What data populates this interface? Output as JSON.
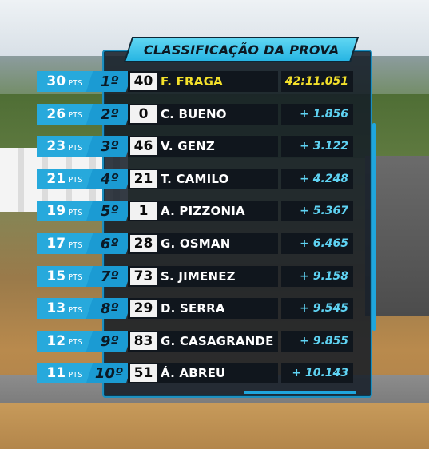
{
  "title": "CLASSIFICAÇÃO DA PROVA",
  "pts_unit": "PTS",
  "colors": {
    "accent": "#27a9dc",
    "leader_text": "#f4e12b",
    "gap_text": "#5fd3f3",
    "panel_bg": "#14202a"
  },
  "standings": [
    {
      "points": "30",
      "position": "1º",
      "car_number": "40",
      "driver": "F. FRAGA",
      "gap": "42:11.051",
      "leader": true
    },
    {
      "points": "26",
      "position": "2º",
      "car_number": "0",
      "driver": "C. BUENO",
      "gap": "+ 1.856",
      "leader": false
    },
    {
      "points": "23",
      "position": "3º",
      "car_number": "46",
      "driver": "V. GENZ",
      "gap": "+ 3.122",
      "leader": false
    },
    {
      "points": "21",
      "position": "4º",
      "car_number": "21",
      "driver": "T. CAMILO",
      "gap": "+ 4.248",
      "leader": false
    },
    {
      "points": "19",
      "position": "5º",
      "car_number": "1",
      "driver": "A. PIZZONIA",
      "gap": "+ 5.367",
      "leader": false
    },
    {
      "points": "17",
      "position": "6º",
      "car_number": "28",
      "driver": "G. OSMAN",
      "gap": "+ 6.465",
      "leader": false
    },
    {
      "points": "15",
      "position": "7º",
      "car_number": "73",
      "driver": "S. JIMENEZ",
      "gap": "+ 9.158",
      "leader": false
    },
    {
      "points": "13",
      "position": "8º",
      "car_number": "29",
      "driver": "D. SERRA",
      "gap": "+ 9.545",
      "leader": false
    },
    {
      "points": "12",
      "position": "9º",
      "car_number": "83",
      "driver": "G. CASAGRANDE",
      "gap": "+ 9.855",
      "leader": false
    },
    {
      "points": "11",
      "position": "10º",
      "car_number": "51",
      "driver": "Á. ABREU",
      "gap": "+ 10.143",
      "leader": false
    }
  ]
}
